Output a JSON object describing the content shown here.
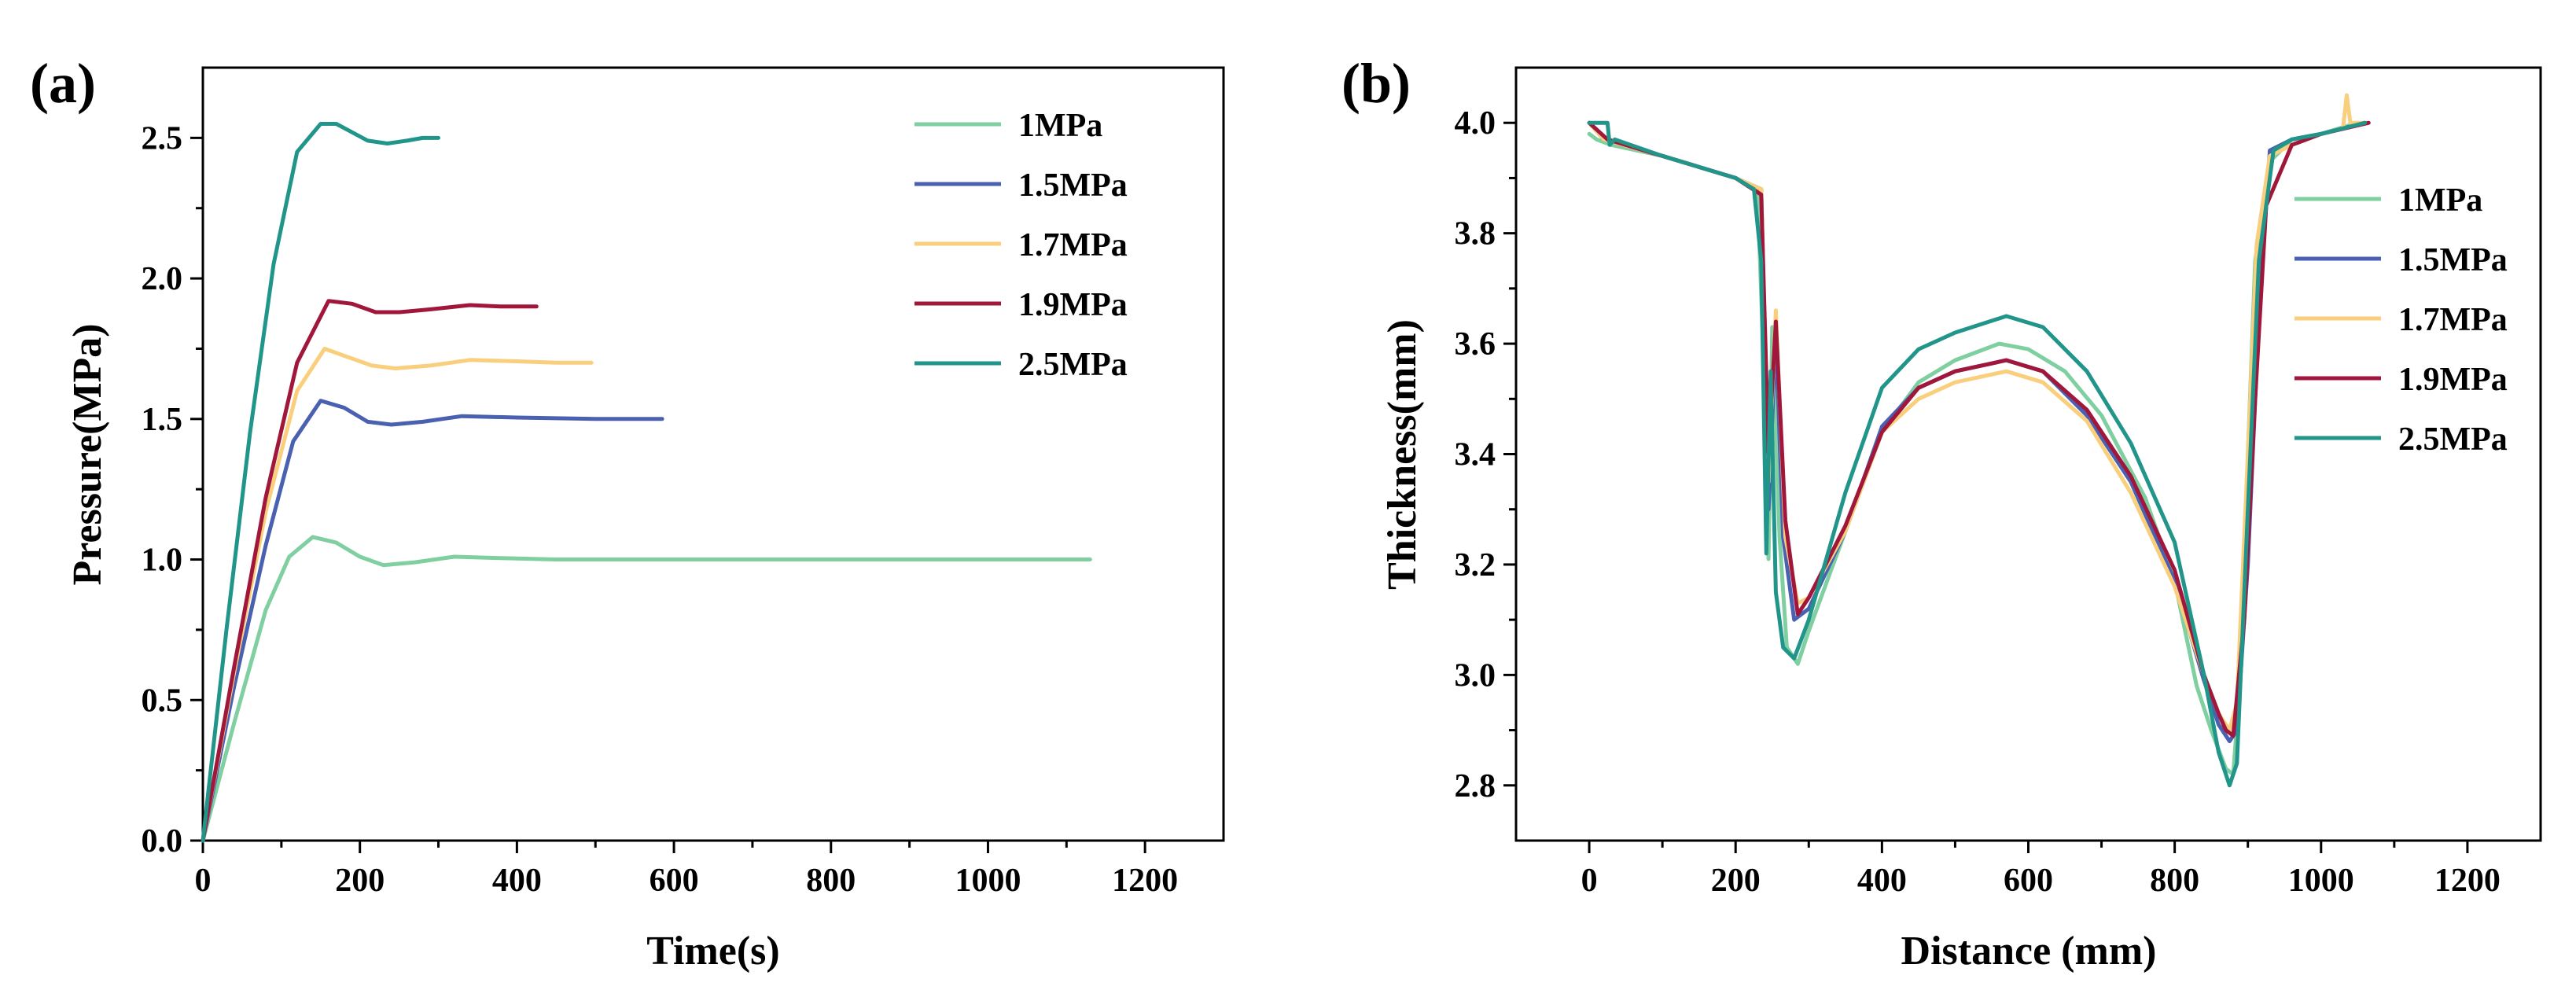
{
  "chart_data": [
    {
      "panel_label": "(a)",
      "type": "line",
      "xlabel": "Time(s)",
      "ylabel": "Pressure(MPa)",
      "xlim": [
        0,
        1300
      ],
      "ylim": [
        0.0,
        2.75
      ],
      "xticks": [
        0,
        200,
        400,
        600,
        800,
        1000,
        1200
      ],
      "xtick_labels": [
        "0",
        "200",
        "400",
        "600",
        "800",
        "1000",
        "1200"
      ],
      "yticks": [
        0.0,
        0.5,
        1.0,
        1.5,
        2.0,
        2.5
      ],
      "ytick_labels": [
        "0.0",
        "0.5",
        "1.0",
        "1.5",
        "2.0",
        "2.5"
      ],
      "grid": false,
      "legend": "top-right",
      "series": [
        {
          "name": "1MPa",
          "color": "#7FCFA0",
          "x": [
            0,
            40,
            80,
            110,
            140,
            170,
            200,
            230,
            270,
            320,
            380,
            450,
            600,
            800,
            1000,
            1130
          ],
          "y": [
            0,
            0.42,
            0.82,
            1.01,
            1.08,
            1.06,
            1.01,
            0.98,
            0.99,
            1.01,
            1.005,
            1.0,
            1.0,
            1.0,
            1.0,
            1.0
          ]
        },
        {
          "name": "1.5MPa",
          "color": "#4A60B0",
          "x": [
            0,
            40,
            80,
            115,
            150,
            180,
            210,
            240,
            280,
            330,
            400,
            500,
            585
          ],
          "y": [
            0,
            0.55,
            1.05,
            1.42,
            1.565,
            1.54,
            1.49,
            1.48,
            1.49,
            1.51,
            1.505,
            1.5,
            1.5
          ]
        },
        {
          "name": "1.7MPa",
          "color": "#F9CF7E",
          "x": [
            0,
            40,
            80,
            120,
            155,
            185,
            215,
            245,
            290,
            340,
            400,
            450,
            495
          ],
          "y": [
            0,
            0.6,
            1.17,
            1.6,
            1.75,
            1.72,
            1.69,
            1.68,
            1.69,
            1.71,
            1.705,
            1.7,
            1.7
          ]
        },
        {
          "name": "1.9MPa",
          "color": "#A0173B",
          "x": [
            0,
            40,
            80,
            120,
            160,
            190,
            220,
            250,
            290,
            340,
            380,
            425
          ],
          "y": [
            0,
            0.62,
            1.22,
            1.7,
            1.92,
            1.91,
            1.88,
            1.88,
            1.89,
            1.905,
            1.9,
            1.9
          ]
        },
        {
          "name": "2.5MPa",
          "color": "#21958A",
          "x": [
            0,
            30,
            60,
            90,
            120,
            150,
            170,
            190,
            210,
            235,
            260,
            280,
            300
          ],
          "y": [
            0,
            0.75,
            1.45,
            2.05,
            2.45,
            2.55,
            2.55,
            2.52,
            2.49,
            2.48,
            2.49,
            2.5,
            2.5
          ]
        }
      ]
    },
    {
      "panel_label": "(b)",
      "type": "line",
      "xlabel": "Distance (mm)",
      "ylabel": "Thickness(mm)",
      "xlim": [
        -100,
        1300
      ],
      "ylim": [
        2.7,
        4.1
      ],
      "xticks": [
        0,
        200,
        400,
        600,
        800,
        1000,
        1200
      ],
      "xtick_labels": [
        "0",
        "200",
        "400",
        "600",
        "800",
        "1000",
        "1200"
      ],
      "yticks": [
        2.8,
        3.0,
        3.2,
        3.4,
        3.6,
        3.8,
        4.0
      ],
      "ytick_labels": [
        "2.8",
        "3.0",
        "3.2",
        "3.4",
        "3.6",
        "3.8",
        "4.0"
      ],
      "grid": false,
      "legend": "right",
      "series": [
        {
          "name": "1MPa",
          "color": "#7FCFA0",
          "x": [
            0,
            10,
            30,
            100,
            200,
            230,
            240,
            245,
            250,
            260,
            270,
            285,
            300,
            350,
            400,
            450,
            500,
            560,
            600,
            650,
            700,
            760,
            800,
            830,
            850,
            870,
            880,
            890,
            900,
            910,
            930,
            960,
            1000,
            1050
          ],
          "y": [
            3.98,
            3.97,
            3.96,
            3.94,
            3.9,
            3.88,
            3.5,
            3.21,
            3.63,
            3.25,
            3.05,
            3.02,
            3.08,
            3.26,
            3.44,
            3.53,
            3.57,
            3.6,
            3.59,
            3.55,
            3.47,
            3.32,
            3.17,
            2.98,
            2.9,
            2.83,
            2.82,
            3.0,
            3.4,
            3.75,
            3.93,
            3.97,
            3.98,
            4.0
          ]
        },
        {
          "name": "1.5MPa",
          "color": "#4A60B0",
          "x": [
            0,
            20,
            100,
            200,
            235,
            245,
            255,
            265,
            280,
            300,
            350,
            400,
            450,
            500,
            570,
            620,
            680,
            740,
            800,
            840,
            860,
            875,
            885,
            900,
            915,
            930,
            960,
            1000,
            1060
          ],
          "y": [
            4.0,
            3.97,
            3.94,
            3.9,
            3.88,
            3.3,
            3.62,
            3.25,
            3.1,
            3.12,
            3.26,
            3.45,
            3.52,
            3.55,
            3.57,
            3.55,
            3.47,
            3.35,
            3.17,
            2.99,
            2.91,
            2.88,
            2.9,
            3.2,
            3.65,
            3.95,
            3.97,
            3.98,
            4.0
          ]
        },
        {
          "name": "1.7MPa",
          "color": "#F9CF7E",
          "x": [
            0,
            20,
            100,
            200,
            235,
            245,
            255,
            268,
            285,
            300,
            350,
            400,
            450,
            500,
            570,
            620,
            680,
            740,
            800,
            840,
            860,
            875,
            885,
            900,
            912,
            930,
            960,
            1000,
            1030,
            1035,
            1040,
            1060
          ],
          "y": [
            4.0,
            3.97,
            3.94,
            3.9,
            3.88,
            3.35,
            3.66,
            3.25,
            3.13,
            3.14,
            3.26,
            3.44,
            3.5,
            3.53,
            3.55,
            3.53,
            3.46,
            3.33,
            3.16,
            3.0,
            2.93,
            2.9,
            2.95,
            3.4,
            3.78,
            3.94,
            3.96,
            3.98,
            3.99,
            4.05,
            4.0,
            4.0
          ]
        },
        {
          "name": "1.9MPa",
          "color": "#A0173B",
          "x": [
            0,
            25,
            100,
            200,
            235,
            245,
            255,
            268,
            285,
            300,
            350,
            400,
            450,
            500,
            570,
            620,
            680,
            740,
            800,
            840,
            860,
            870,
            880,
            895,
            910,
            925,
            960,
            1000,
            1065
          ],
          "y": [
            4.0,
            3.97,
            3.94,
            3.9,
            3.87,
            3.4,
            3.64,
            3.28,
            3.11,
            3.14,
            3.27,
            3.44,
            3.52,
            3.55,
            3.57,
            3.55,
            3.48,
            3.36,
            3.19,
            3.0,
            2.93,
            2.9,
            2.89,
            3.1,
            3.5,
            3.85,
            3.96,
            3.98,
            4.0
          ]
        },
        {
          "name": "2.5MPa",
          "color": "#21958A",
          "x": [
            0,
            25,
            28,
            35,
            100,
            200,
            225,
            235,
            242,
            248,
            255,
            265,
            280,
            300,
            350,
            400,
            450,
            500,
            570,
            620,
            680,
            740,
            800,
            840,
            860,
            875,
            885,
            900,
            915,
            935,
            960,
            1000,
            1060
          ],
          "y": [
            4.0,
            4.0,
            3.96,
            3.97,
            3.94,
            3.9,
            3.88,
            3.75,
            3.22,
            3.55,
            3.15,
            3.05,
            3.03,
            3.1,
            3.33,
            3.52,
            3.59,
            3.62,
            3.65,
            3.63,
            3.55,
            3.42,
            3.24,
            3.0,
            2.86,
            2.8,
            2.84,
            3.3,
            3.75,
            3.95,
            3.97,
            3.98,
            4.0
          ]
        }
      ]
    }
  ]
}
